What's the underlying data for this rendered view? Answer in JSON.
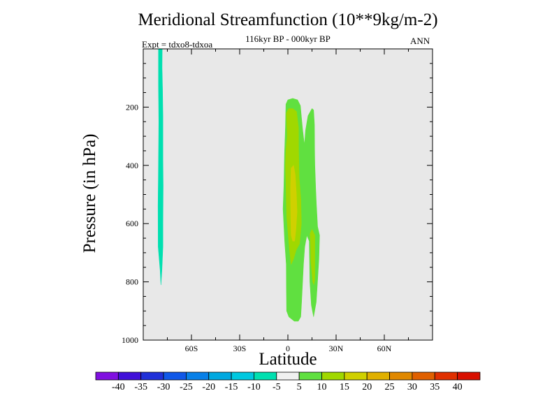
{
  "chart_data": {
    "type": "contour",
    "title": "Meridional Streamfunction (10**9kg/m-2)",
    "subtitle": "116kyr BP - 000kyr BP",
    "left_annotation": "Expt = tdxo8-tdxoa",
    "right_annotation": "ANN",
    "xlabel": "Latitude",
    "ylabel": "Pressure (in hPa)",
    "xlim": [
      -90,
      90
    ],
    "ylim": [
      1000,
      0
    ],
    "x_ticks": [
      {
        "value": -60,
        "label": "60S"
      },
      {
        "value": -30,
        "label": "30S"
      },
      {
        "value": 0,
        "label": "0"
      },
      {
        "value": 30,
        "label": "30N"
      },
      {
        "value": 60,
        "label": "60N"
      }
    ],
    "y_ticks": [
      {
        "value": 200,
        "label": "200"
      },
      {
        "value": 400,
        "label": "400"
      },
      {
        "value": 600,
        "label": "600"
      },
      {
        "value": 800,
        "label": "800"
      },
      {
        "value": 1000,
        "label": "1000"
      }
    ],
    "background_color": "#e8e8e8",
    "contour_regions": [
      {
        "level": "-10 to -5",
        "color": "#00e0b0",
        "polygon": [
          [
            -80.5,
            0
          ],
          [
            -78.2,
            0
          ],
          [
            -78.3,
            65
          ],
          [
            -78.0,
            140
          ],
          [
            -77.8,
            230
          ],
          [
            -77.8,
            380
          ],
          [
            -77.6,
            470
          ],
          [
            -77.8,
            600
          ],
          [
            -77.8,
            680
          ],
          [
            -78.4,
            760
          ],
          [
            -79.0,
            810
          ],
          [
            -79.1,
            800
          ],
          [
            -79.5,
            760
          ],
          [
            -80.7,
            680
          ],
          [
            -80.8,
            540
          ],
          [
            -80.5,
            400
          ],
          [
            -80.3,
            250
          ],
          [
            -80.5,
            120
          ]
        ]
      },
      {
        "level": "5 to 10",
        "color": "#60e040",
        "polygon": [
          [
            -3,
            550
          ],
          [
            -2.5,
            470
          ],
          [
            -2.1,
            360
          ],
          [
            -1.5,
            270
          ],
          [
            -1.2,
            190
          ],
          [
            0,
            175
          ],
          [
            3,
            170
          ],
          [
            6,
            175
          ],
          [
            7.8,
            195
          ],
          [
            8.5,
            240
          ],
          [
            9.2,
            280
          ],
          [
            10.3,
            330
          ],
          [
            11,
            280
          ],
          [
            12.5,
            230
          ],
          [
            15,
            205
          ],
          [
            16,
            210
          ],
          [
            16.5,
            260
          ],
          [
            16.6,
            340
          ],
          [
            16.8,
            400
          ],
          [
            17.3,
            480
          ],
          [
            17.7,
            530
          ],
          [
            18.5,
            610
          ],
          [
            19.7,
            640
          ],
          [
            19.3,
            720
          ],
          [
            18.3,
            810
          ],
          [
            17.6,
            870
          ],
          [
            16,
            920
          ],
          [
            14.6,
            880
          ],
          [
            13.7,
            800
          ],
          [
            13.5,
            720
          ],
          [
            13.3,
            660
          ],
          [
            11.8,
            640
          ],
          [
            10.5,
            680
          ],
          [
            9.7,
            740
          ],
          [
            8.5,
            870
          ],
          [
            8,
            920
          ],
          [
            6.5,
            935
          ],
          [
            4,
            935
          ],
          [
            0.6,
            920
          ],
          [
            -0.8,
            900
          ],
          [
            -0.9,
            820
          ],
          [
            -1,
            740
          ],
          [
            -2,
            660
          ]
        ]
      },
      {
        "level": "10 to 15",
        "color": "#a0d800",
        "polygon": [
          [
            -0.7,
            580
          ],
          [
            -1,
            520
          ],
          [
            -1.2,
            460
          ],
          [
            -1.5,
            400
          ],
          [
            -1.2,
            350
          ],
          [
            -0.5,
            300
          ],
          [
            -0.9,
            220
          ],
          [
            0.5,
            205
          ],
          [
            3,
            205
          ],
          [
            5.4,
            215
          ],
          [
            6.6,
            270
          ],
          [
            6.7,
            350
          ],
          [
            7,
            440
          ],
          [
            8.1,
            520
          ],
          [
            8.4,
            600
          ],
          [
            7.2,
            670
          ],
          [
            5.2,
            690
          ],
          [
            3.6,
            720
          ],
          [
            2,
            740
          ],
          [
            1,
            690
          ]
        ]
      },
      {
        "level": "10 to 15",
        "color": "#a0d800",
        "polygon": [
          [
            13.8,
            635
          ],
          [
            15,
            620
          ],
          [
            16.8,
            640
          ],
          [
            16.8,
            700
          ],
          [
            16.8,
            790
          ],
          [
            16.2,
            810
          ],
          [
            15.5,
            800
          ],
          [
            14.3,
            730
          ],
          [
            14.1,
            665
          ]
        ]
      },
      {
        "level": "15 to 20",
        "color": "#d0d000",
        "polygon": [
          [
            2,
            410
          ],
          [
            3.5,
            400
          ],
          [
            4.5,
            430
          ],
          [
            5.3,
            500
          ],
          [
            5.7,
            560
          ],
          [
            5,
            620
          ],
          [
            4.2,
            660
          ],
          [
            3,
            660
          ],
          [
            2,
            640
          ],
          [
            1.8,
            570
          ],
          [
            1.6,
            480
          ]
        ]
      }
    ],
    "colorbar": {
      "labels": [
        "-40",
        "-35",
        "-30",
        "-25",
        "-20",
        "-15",
        "-10",
        "-5",
        "5",
        "10",
        "15",
        "20",
        "25",
        "30",
        "35",
        "40"
      ],
      "colors": [
        "#8010e0",
        "#4010d8",
        "#2030d8",
        "#1058e8",
        "#0880e8",
        "#00a8e0",
        "#00c8e0",
        "#00e0b0",
        "#f0f0f0",
        "#60e040",
        "#a0d800",
        "#d0d000",
        "#e0b000",
        "#e08800",
        "#e06000",
        "#e03000",
        "#d81000"
      ]
    }
  }
}
